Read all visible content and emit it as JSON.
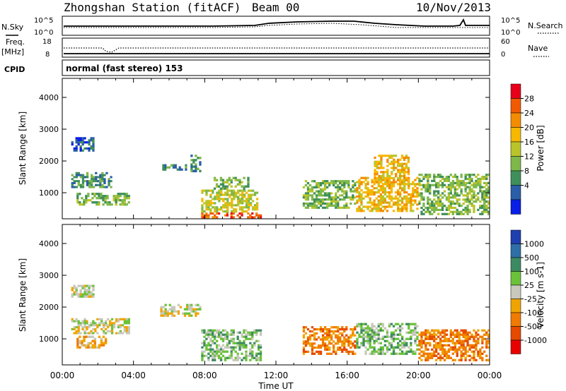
{
  "header": {
    "title": "Zhongshan Station (fitACF)",
    "beam": "Beam 00",
    "date": "10/Nov/2013"
  },
  "strip_panels": {
    "nsky_label": "N.Sky",
    "nsearch_label": "N.Search",
    "noise_left_top": "10^5",
    "noise_left_bottom": "10^0",
    "noise_right_top": "10^5",
    "noise_right_bottom": "10^0",
    "freq_label_1": "Freq.",
    "freq_label_2": "[MHz]",
    "freq_top": "18",
    "freq_bottom": "8",
    "nave_label": "Nave",
    "nave_top": "60",
    "nave_bottom": "0",
    "cpid_label": "CPID",
    "cpid_text": "normal (fast stereo) 153"
  },
  "power_panel": {
    "ylabel": "Slant Range [km]",
    "colorbar_label": "Power [dB]",
    "colorbar_ticks": [
      "28",
      "24",
      "20",
      "16",
      "12",
      "8",
      "4"
    ],
    "colorbar_colors": [
      "#e8001b",
      "#f25a00",
      "#f48c00",
      "#f7b800",
      "#b9c42a",
      "#7eb84a",
      "#3f8f5a",
      "#2b5ea8",
      "#0a1fe6"
    ]
  },
  "velocity_panel": {
    "ylabel": "Slant Range [km]",
    "colorbar_label": "Velocity [m s-1]",
    "colorbar_ticks": [
      "1000",
      "500",
      "100",
      "25",
      "-25",
      "-100",
      "-500",
      "-1000"
    ],
    "colorbar_colors": [
      "#1f3fb0",
      "#2f6fa8",
      "#3c8a62",
      "#6bc23a",
      "#c8c8bc",
      "#f0a400",
      "#f07b00",
      "#e54a00",
      "#e80000"
    ]
  },
  "xaxis": {
    "label": "Time UT",
    "ticks": [
      "00:00",
      "04:00",
      "08:00",
      "12:00",
      "16:00",
      "20:00",
      "00:00"
    ]
  },
  "chart_data": [
    {
      "type": "heatmap",
      "title": "Power",
      "xlabel": "Time UT",
      "ylabel": "Slant Range [km]",
      "xlim_hours": [
        0,
        24
      ],
      "ylim": [
        180,
        4600
      ],
      "yticks": [
        1000,
        2000,
        3000,
        4000
      ],
      "colorbar_range_db": [
        0,
        30
      ],
      "patches": [
        {
          "t0": 0.5,
          "t1": 2.8,
          "r0": 1150,
          "r1": 1650,
          "level": 8
        },
        {
          "t0": 0.5,
          "t1": 1.8,
          "r0": 2300,
          "r1": 2750,
          "level": 5
        },
        {
          "t0": 0.8,
          "t1": 3.8,
          "r0": 600,
          "r1": 1000,
          "level": 10
        },
        {
          "t0": 5.5,
          "t1": 7.0,
          "r0": 1700,
          "r1": 1900,
          "level": 6
        },
        {
          "t0": 7.2,
          "t1": 7.8,
          "r0": 1650,
          "r1": 2200,
          "level": 8
        },
        {
          "t0": 7.8,
          "t1": 11.2,
          "r0": 200,
          "r1": 380,
          "level": 28
        },
        {
          "t0": 7.8,
          "t1": 11.0,
          "r0": 380,
          "r1": 1100,
          "level": 14
        },
        {
          "t0": 8.5,
          "t1": 10.5,
          "r0": 1100,
          "r1": 1500,
          "level": 10
        },
        {
          "t0": 13.5,
          "t1": 16.5,
          "r0": 500,
          "r1": 1400,
          "level": 12
        },
        {
          "t0": 16.5,
          "t1": 20.0,
          "r0": 400,
          "r1": 1500,
          "level": 20
        },
        {
          "t0": 17.5,
          "t1": 19.5,
          "r0": 1300,
          "r1": 2200,
          "level": 18
        },
        {
          "t0": 20.0,
          "t1": 24.0,
          "r0": 300,
          "r1": 1600,
          "level": 12
        }
      ]
    },
    {
      "type": "heatmap",
      "title": "Velocity",
      "xlabel": "Time UT",
      "ylabel": "Slant Range [km]",
      "xlim_hours": [
        0,
        24
      ],
      "ylim": [
        180,
        4600
      ],
      "yticks": [
        1000,
        2000,
        3000,
        4000
      ],
      "colorbar_range_ms": [
        -1000,
        1000
      ],
      "patches": [
        {
          "t0": 0.5,
          "t1": 1.8,
          "r0": 2300,
          "r1": 2700,
          "velocity": 0
        },
        {
          "t0": 0.5,
          "t1": 3.8,
          "r0": 1150,
          "r1": 1650,
          "velocity": -120
        },
        {
          "t0": 0.8,
          "t1": 2.5,
          "r0": 700,
          "r1": 1100,
          "velocity": -300
        },
        {
          "t0": 5.5,
          "t1": 7.8,
          "r0": 1700,
          "r1": 2100,
          "velocity": 0
        },
        {
          "t0": 7.8,
          "t1": 11.2,
          "r0": 300,
          "r1": 1300,
          "velocity": 300
        },
        {
          "t0": 13.5,
          "t1": 16.5,
          "r0": 500,
          "r1": 1400,
          "velocity": -400
        },
        {
          "t0": 16.5,
          "t1": 20.0,
          "r0": 500,
          "r1": 1500,
          "velocity": 200
        },
        {
          "t0": 20.0,
          "t1": 24.0,
          "r0": 300,
          "r1": 1300,
          "velocity": -400
        }
      ]
    }
  ]
}
